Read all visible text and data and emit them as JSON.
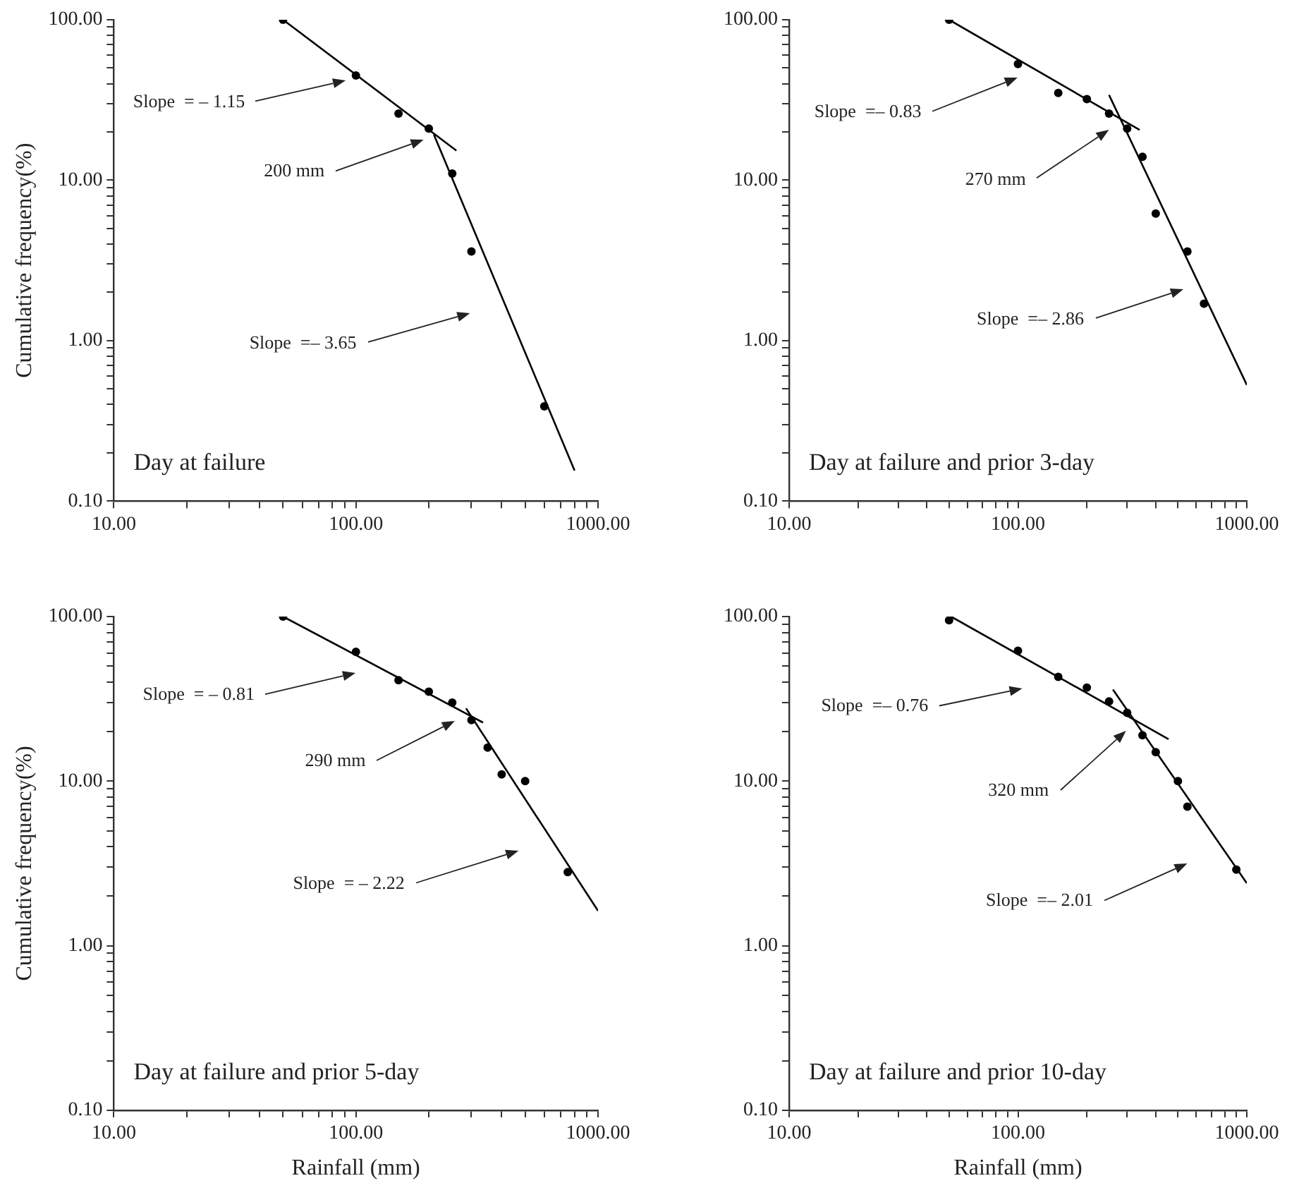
{
  "chart_data": [
    {
      "type": "scatter",
      "title": "Day at failure",
      "ylabel": "Cumulative frequency(%)",
      "log": "xy",
      "grid": false,
      "legend": false,
      "xlim": [
        10,
        1000
      ],
      "xticks": [
        {
          "value": 10,
          "label": "10.00"
        },
        {
          "value": 20,
          "label": null
        },
        {
          "value": 30,
          "label": null
        },
        {
          "value": 40,
          "label": null
        },
        {
          "value": 50,
          "label": null
        },
        {
          "value": 60,
          "label": null
        },
        {
          "value": 70,
          "label": null
        },
        {
          "value": 80,
          "label": null
        },
        {
          "value": 90,
          "label": null
        },
        {
          "value": 100,
          "label": "100.00"
        },
        {
          "value": 200,
          "label": null
        },
        {
          "value": 300,
          "label": null
        },
        {
          "value": 400,
          "label": null
        },
        {
          "value": 500,
          "label": null
        },
        {
          "value": 600,
          "label": null
        },
        {
          "value": 700,
          "label": null
        },
        {
          "value": 800,
          "label": null
        },
        {
          "value": 900,
          "label": null
        },
        {
          "value": 1000,
          "label": "1000.00"
        }
      ],
      "ylim": [
        0.1,
        100
      ],
      "yticks": [
        {
          "value": 0.1,
          "label": "0.10"
        },
        {
          "value": 0.2,
          "label": null
        },
        {
          "value": 0.3,
          "label": null
        },
        {
          "value": 0.4,
          "label": null
        },
        {
          "value": 0.5,
          "label": null
        },
        {
          "value": 0.6,
          "label": null
        },
        {
          "value": 0.7,
          "label": null
        },
        {
          "value": 0.8,
          "label": null
        },
        {
          "value": 0.9,
          "label": null
        },
        {
          "value": 1,
          "label": "1.00"
        },
        {
          "value": 2,
          "label": null
        },
        {
          "value": 3,
          "label": null
        },
        {
          "value": 4,
          "label": null
        },
        {
          "value": 5,
          "label": null
        },
        {
          "value": 6,
          "label": null
        },
        {
          "value": 7,
          "label": null
        },
        {
          "value": 8,
          "label": null
        },
        {
          "value": 9,
          "label": null
        },
        {
          "value": 10,
          "label": "10.00"
        },
        {
          "value": 20,
          "label": null
        },
        {
          "value": 30,
          "label": null
        },
        {
          "value": 40,
          "label": null
        },
        {
          "value": 50,
          "label": null
        },
        {
          "value": 60,
          "label": null
        },
        {
          "value": 70,
          "label": null
        },
        {
          "value": 80,
          "label": null
        },
        {
          "value": 90,
          "label": null
        },
        {
          "value": 100,
          "label": "100.00"
        }
      ],
      "series": [
        {
          "type": "scatter",
          "marker": "circle",
          "color": "#000000",
          "x": [
            50,
            100,
            150,
            200,
            250,
            300,
            600
          ],
          "values": [
            100,
            45,
            26,
            21,
            11,
            3.6,
            0.39
          ]
        },
        {
          "type": "line",
          "color": "#000000",
          "x": [
            50,
            260
          ],
          "values": [
            100,
            15.3
          ]
        },
        {
          "type": "line",
          "color": "#000000",
          "x": [
            210,
            800
          ],
          "values": [
            19.2,
            0.155
          ]
        }
      ],
      "annotations": [
        "Slope  = – 1.15",
        "200 mm",
        "Slope  =– 3.65"
      ]
    },
    {
      "type": "scatter",
      "title": "Day at failure and prior 3-day",
      "log": "xy",
      "grid": false,
      "legend": false,
      "xlim": [
        10,
        1000
      ],
      "xticks": [
        {
          "value": 10,
          "label": "10.00"
        },
        {
          "value": 20,
          "label": null
        },
        {
          "value": 30,
          "label": null
        },
        {
          "value": 40,
          "label": null
        },
        {
          "value": 50,
          "label": null
        },
        {
          "value": 60,
          "label": null
        },
        {
          "value": 70,
          "label": null
        },
        {
          "value": 80,
          "label": null
        },
        {
          "value": 90,
          "label": null
        },
        {
          "value": 100,
          "label": "100.00"
        },
        {
          "value": 200,
          "label": null
        },
        {
          "value": 300,
          "label": null
        },
        {
          "value": 400,
          "label": null
        },
        {
          "value": 500,
          "label": null
        },
        {
          "value": 600,
          "label": null
        },
        {
          "value": 700,
          "label": null
        },
        {
          "value": 800,
          "label": null
        },
        {
          "value": 900,
          "label": null
        },
        {
          "value": 1000,
          "label": "1000.00"
        }
      ],
      "ylim": [
        0.1,
        100
      ],
      "yticks": [
        {
          "value": 0.1,
          "label": "0.10"
        },
        {
          "value": 0.2,
          "label": null
        },
        {
          "value": 0.3,
          "label": null
        },
        {
          "value": 0.4,
          "label": null
        },
        {
          "value": 0.5,
          "label": null
        },
        {
          "value": 0.6,
          "label": null
        },
        {
          "value": 0.7,
          "label": null
        },
        {
          "value": 0.8,
          "label": null
        },
        {
          "value": 0.9,
          "label": null
        },
        {
          "value": 1,
          "label": "1.00"
        },
        {
          "value": 2,
          "label": null
        },
        {
          "value": 3,
          "label": null
        },
        {
          "value": 4,
          "label": null
        },
        {
          "value": 5,
          "label": null
        },
        {
          "value": 6,
          "label": null
        },
        {
          "value": 7,
          "label": null
        },
        {
          "value": 8,
          "label": null
        },
        {
          "value": 9,
          "label": null
        },
        {
          "value": 10,
          "label": "10.00"
        },
        {
          "value": 20,
          "label": null
        },
        {
          "value": 30,
          "label": null
        },
        {
          "value": 40,
          "label": null
        },
        {
          "value": 50,
          "label": null
        },
        {
          "value": 60,
          "label": null
        },
        {
          "value": 70,
          "label": null
        },
        {
          "value": 80,
          "label": null
        },
        {
          "value": 90,
          "label": null
        },
        {
          "value": 100,
          "label": "100.00"
        }
      ],
      "series": [
        {
          "type": "scatter",
          "marker": "circle",
          "color": "#000000",
          "x": [
            50,
            100,
            150,
            200,
            250,
            300,
            350,
            400,
            550,
            650
          ],
          "values": [
            100,
            53,
            35,
            32,
            26,
            21,
            14,
            6.2,
            3.6,
            1.7
          ]
        },
        {
          "type": "line",
          "color": "#000000",
          "x": [
            50,
            340
          ],
          "values": [
            100,
            20.6
          ]
        },
        {
          "type": "line",
          "color": "#000000",
          "x": [
            250,
            1000
          ],
          "values": [
            34,
            0.53
          ]
        }
      ],
      "annotations": [
        "Slope  =– 0.83",
        "270 mm",
        "Slope  =– 2.86"
      ]
    },
    {
      "type": "scatter",
      "title": "Day at failure and prior 5-day",
      "xlabel": "Rainfall (mm)",
      "ylabel": "Cumulative frequency(%)",
      "log": "xy",
      "grid": false,
      "legend": false,
      "xlim": [
        10,
        1000
      ],
      "xticks": [
        {
          "value": 10,
          "label": "10.00"
        },
        {
          "value": 20,
          "label": null
        },
        {
          "value": 30,
          "label": null
        },
        {
          "value": 40,
          "label": null
        },
        {
          "value": 50,
          "label": null
        },
        {
          "value": 60,
          "label": null
        },
        {
          "value": 70,
          "label": null
        },
        {
          "value": 80,
          "label": null
        },
        {
          "value": 90,
          "label": null
        },
        {
          "value": 100,
          "label": "100.00"
        },
        {
          "value": 200,
          "label": null
        },
        {
          "value": 300,
          "label": null
        },
        {
          "value": 400,
          "label": null
        },
        {
          "value": 500,
          "label": null
        },
        {
          "value": 600,
          "label": null
        },
        {
          "value": 700,
          "label": null
        },
        {
          "value": 800,
          "label": null
        },
        {
          "value": 900,
          "label": null
        },
        {
          "value": 1000,
          "label": "1000.00"
        }
      ],
      "ylim": [
        0.1,
        100
      ],
      "yticks": [
        {
          "value": 0.1,
          "label": "0.10"
        },
        {
          "value": 0.2,
          "label": null
        },
        {
          "value": 0.3,
          "label": null
        },
        {
          "value": 0.4,
          "label": null
        },
        {
          "value": 0.5,
          "label": null
        },
        {
          "value": 0.6,
          "label": null
        },
        {
          "value": 0.7,
          "label": null
        },
        {
          "value": 0.8,
          "label": null
        },
        {
          "value": 0.9,
          "label": null
        },
        {
          "value": 1,
          "label": "1.00"
        },
        {
          "value": 2,
          "label": null
        },
        {
          "value": 3,
          "label": null
        },
        {
          "value": 4,
          "label": null
        },
        {
          "value": 5,
          "label": null
        },
        {
          "value": 6,
          "label": null
        },
        {
          "value": 7,
          "label": null
        },
        {
          "value": 8,
          "label": null
        },
        {
          "value": 9,
          "label": null
        },
        {
          "value": 10,
          "label": "10.00"
        },
        {
          "value": 20,
          "label": null
        },
        {
          "value": 30,
          "label": null
        },
        {
          "value": 40,
          "label": null
        },
        {
          "value": 50,
          "label": null
        },
        {
          "value": 60,
          "label": null
        },
        {
          "value": 70,
          "label": null
        },
        {
          "value": 80,
          "label": null
        },
        {
          "value": 90,
          "label": null
        },
        {
          "value": 100,
          "label": "100.00"
        }
      ],
      "series": [
        {
          "type": "scatter",
          "marker": "circle",
          "color": "#000000",
          "x": [
            50,
            100,
            150,
            200,
            250,
            300,
            350,
            400,
            500,
            750
          ],
          "values": [
            100,
            61,
            41,
            35,
            30,
            23.5,
            16,
            11,
            10,
            2.8
          ]
        },
        {
          "type": "line",
          "color": "#000000",
          "x": [
            50,
            335
          ],
          "values": [
            100,
            22.7
          ]
        },
        {
          "type": "line",
          "color": "#000000",
          "x": [
            285,
            1000
          ],
          "values": [
            27.7,
            1.63
          ]
        }
      ],
      "annotations": [
        "Slope  = – 0.81",
        "290 mm",
        "Slope  = – 2.22"
      ]
    },
    {
      "type": "scatter",
      "title": "Day at failure and prior 10-day",
      "xlabel": "Rainfall (mm)",
      "log": "xy",
      "grid": false,
      "legend": false,
      "xlim": [
        10,
        1000
      ],
      "xticks": [
        {
          "value": 10,
          "label": "10.00"
        },
        {
          "value": 20,
          "label": null
        },
        {
          "value": 30,
          "label": null
        },
        {
          "value": 40,
          "label": null
        },
        {
          "value": 50,
          "label": null
        },
        {
          "value": 60,
          "label": null
        },
        {
          "value": 70,
          "label": null
        },
        {
          "value": 80,
          "label": null
        },
        {
          "value": 90,
          "label": null
        },
        {
          "value": 100,
          "label": "100.00"
        },
        {
          "value": 200,
          "label": null
        },
        {
          "value": 300,
          "label": null
        },
        {
          "value": 400,
          "label": null
        },
        {
          "value": 500,
          "label": null
        },
        {
          "value": 600,
          "label": null
        },
        {
          "value": 700,
          "label": null
        },
        {
          "value": 800,
          "label": null
        },
        {
          "value": 900,
          "label": null
        },
        {
          "value": 1000,
          "label": "1000.00"
        }
      ],
      "ylim": [
        0.1,
        100
      ],
      "yticks": [
        {
          "value": 0.1,
          "label": "0.10"
        },
        {
          "value": 0.2,
          "label": null
        },
        {
          "value": 0.3,
          "label": null
        },
        {
          "value": 0.4,
          "label": null
        },
        {
          "value": 0.5,
          "label": null
        },
        {
          "value": 0.6,
          "label": null
        },
        {
          "value": 0.7,
          "label": null
        },
        {
          "value": 0.8,
          "label": null
        },
        {
          "value": 0.9,
          "label": null
        },
        {
          "value": 1,
          "label": "1.00"
        },
        {
          "value": 2,
          "label": null
        },
        {
          "value": 3,
          "label": null
        },
        {
          "value": 4,
          "label": null
        },
        {
          "value": 5,
          "label": null
        },
        {
          "value": 6,
          "label": null
        },
        {
          "value": 7,
          "label": null
        },
        {
          "value": 8,
          "label": null
        },
        {
          "value": 9,
          "label": null
        },
        {
          "value": 10,
          "label": "10.00"
        },
        {
          "value": 20,
          "label": null
        },
        {
          "value": 30,
          "label": null
        },
        {
          "value": 40,
          "label": null
        },
        {
          "value": 50,
          "label": null
        },
        {
          "value": 60,
          "label": null
        },
        {
          "value": 70,
          "label": null
        },
        {
          "value": 80,
          "label": null
        },
        {
          "value": 90,
          "label": null
        },
        {
          "value": 100,
          "label": "100.00"
        }
      ],
      "series": [
        {
          "type": "scatter",
          "marker": "circle",
          "color": "#000000",
          "x": [
            50,
            100,
            150,
            200,
            250,
            300,
            350,
            400,
            500,
            550,
            900
          ],
          "values": [
            95,
            62,
            43,
            37,
            30.5,
            26,
            19,
            15,
            10,
            7,
            2.9
          ]
        },
        {
          "type": "line",
          "color": "#000000",
          "x": [
            51,
            455
          ],
          "values": [
            100,
            18
          ]
        },
        {
          "type": "line",
          "color": "#000000",
          "x": [
            260,
            1000
          ],
          "values": [
            36,
            2.4
          ]
        }
      ],
      "annotations": [
        "Slope  =– 0.76",
        "320 mm",
        "Slope  =– 2.01"
      ]
    }
  ]
}
